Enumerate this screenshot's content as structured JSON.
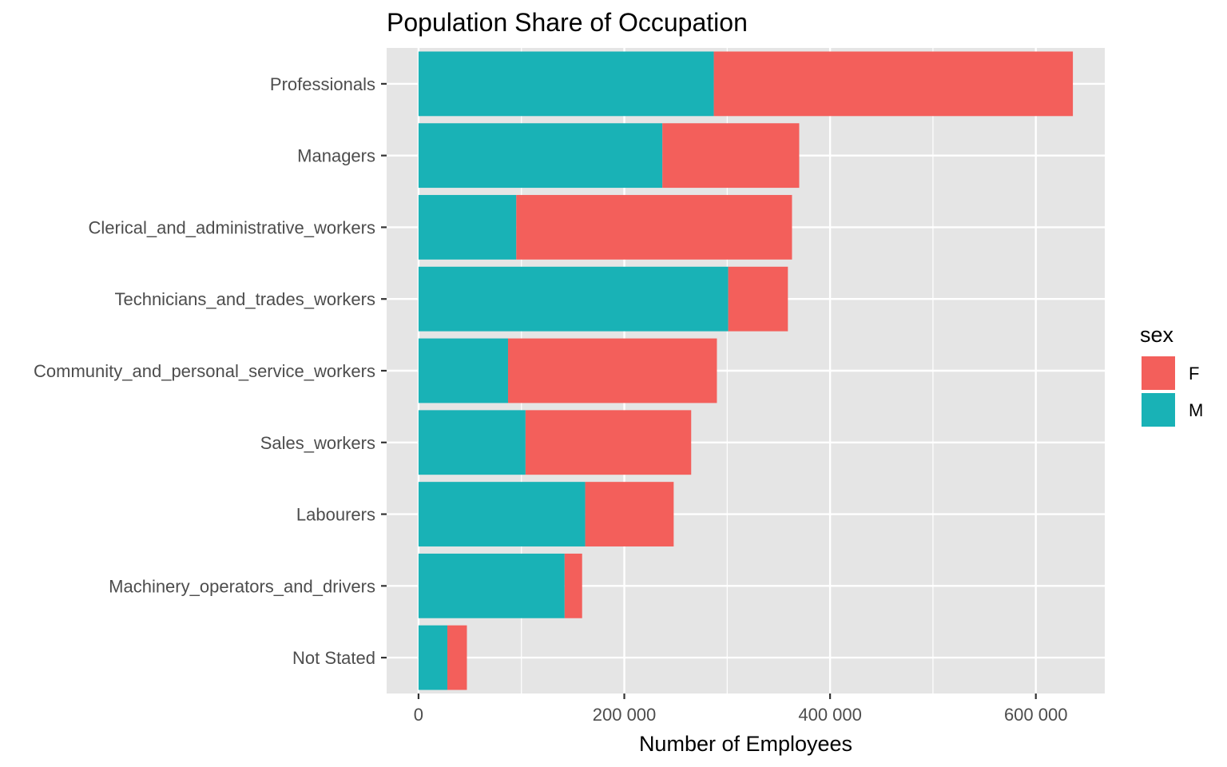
{
  "chart_data": {
    "type": "bar",
    "orientation": "horizontal",
    "stacked": true,
    "title": "Population Share of Occupation",
    "xlabel": "Number of Employees",
    "ylabel": "",
    "xlim": [
      -31000,
      667000
    ],
    "xticks": [
      0,
      200000,
      400000,
      600000
    ],
    "xtick_labels": [
      "0",
      "200 000",
      "400 000",
      "600 000"
    ],
    "grid": true,
    "legend_position": "right",
    "legend_title": "sex",
    "categories": [
      "Professionals",
      "Managers",
      "Clerical_and_administrative_workers",
      "Technicians_and_trades_workers",
      "Community_and_personal_service_workers",
      "Sales_workers",
      "Labourers",
      "Machinery_operators_and_drivers",
      "Not Stated"
    ],
    "series": [
      {
        "name": "M",
        "color": "#19B2B6",
        "values": [
          287000,
          237000,
          95000,
          301000,
          87000,
          104000,
          162000,
          142000,
          28000
        ]
      },
      {
        "name": "F",
        "color": "#F35F5B",
        "values": [
          349000,
          133000,
          268000,
          58000,
          203000,
          161000,
          86000,
          17000,
          19000
        ]
      }
    ],
    "legend": [
      {
        "name": "F",
        "color": "#F35F5B"
      },
      {
        "name": "M",
        "color": "#19B2B6"
      }
    ]
  }
}
